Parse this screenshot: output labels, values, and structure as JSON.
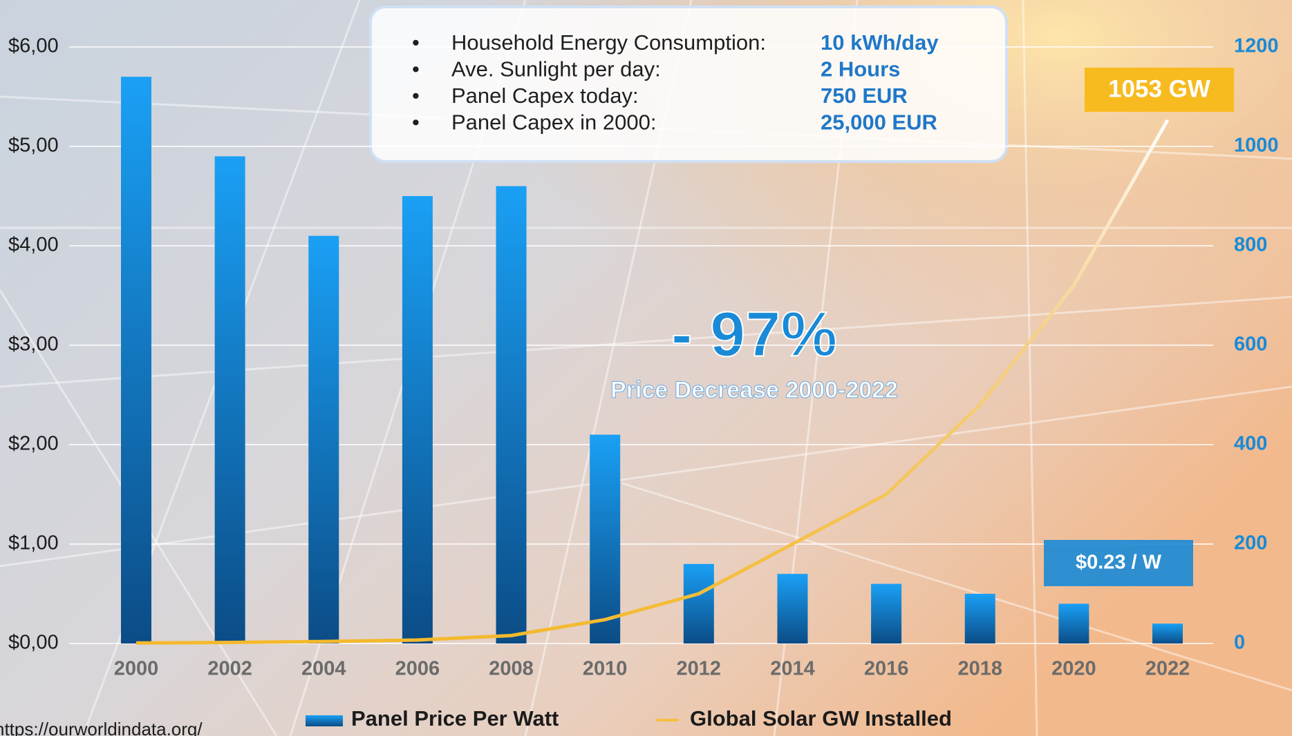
{
  "chart_data": {
    "type": "bar",
    "categories": [
      "2000",
      "2002",
      "2004",
      "2006",
      "2008",
      "2010",
      "2012",
      "2014",
      "2016",
      "2018",
      "2020",
      "2022"
    ],
    "series": [
      {
        "name": "Panel Price Per Watt",
        "color": "#1a9cf0",
        "values": [
          5.7,
          4.9,
          4.1,
          4.5,
          4.6,
          2.1,
          0.8,
          0.7,
          0.6,
          0.5,
          0.4,
          0.2
        ]
      },
      {
        "name": "Global Solar GW Installed",
        "color": "#f5c043",
        "type": "line",
        "axis": "y2",
        "values": [
          1,
          2,
          4,
          7,
          16,
          48,
          100,
          200,
          300,
          480,
          720,
          1053
        ]
      }
    ],
    "ylim": [
      0,
      6
    ],
    "yticks": [
      {
        "value": 0,
        "label": "$0,00"
      },
      {
        "value": 1,
        "label": "$1,00"
      },
      {
        "value": 2,
        "label": "$2,00"
      },
      {
        "value": 3,
        "label": "$3,00"
      },
      {
        "value": 4,
        "label": "$4,00"
      },
      {
        "value": 5,
        "label": "$5,00"
      },
      {
        "value": 6,
        "label": "$6,00"
      }
    ],
    "y2lim": [
      0,
      1200
    ],
    "y2ticks": [
      0,
      200,
      400,
      600,
      800,
      1000,
      1200
    ],
    "grid": true,
    "annotations": [
      "- 97%",
      "Price Decrease 2000-2022",
      "1053 GW",
      "$0.23 / W"
    ],
    "info_box": [
      {
        "label": "Household Energy Consumption:",
        "value": "10 kWh/day"
      },
      {
        "label": "Ave. Sunlight per day:",
        "value": "2 Hours"
      },
      {
        "label": "Panel Capex today:",
        "value": "750 EUR"
      },
      {
        "label": "Panel Capex in 2000:",
        "value": "25,000 EUR"
      }
    ]
  },
  "source": "https://ourworldindata.org/"
}
